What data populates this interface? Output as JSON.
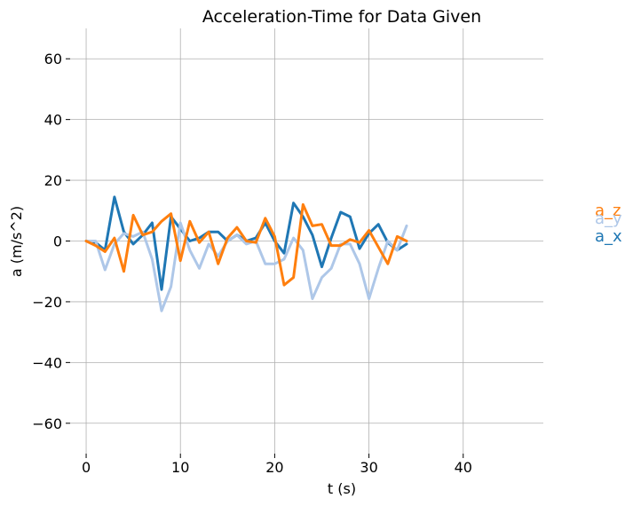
{
  "chart_data": {
    "type": "line",
    "title": "Acceleration-Time for Data Given",
    "xlabel": "t (s)",
    "ylabel": "a (m/s^2)",
    "xlim": [
      -1.7,
      48.5
    ],
    "ylim": [
      -70,
      70
    ],
    "x_ticks": [
      0,
      10,
      20,
      30,
      40
    ],
    "y_ticks": [
      -60,
      -40,
      -20,
      0,
      20,
      40,
      60
    ],
    "x_tick_labels": [
      "0",
      "10",
      "20",
      "30",
      "40"
    ],
    "y_tick_labels": [
      "−60",
      "−40",
      "−20",
      "0",
      "20",
      "40",
      "60"
    ],
    "grid": true,
    "legend": "direct labels at right end",
    "x": [
      0,
      1,
      2,
      3,
      4,
      5,
      6,
      7,
      8,
      9,
      10,
      11,
      12,
      13,
      14,
      15,
      16,
      17,
      18,
      19,
      20,
      21,
      22,
      23,
      24,
      25,
      26,
      27,
      28,
      29,
      30,
      31,
      32,
      33,
      34
    ],
    "series": [
      {
        "name": "a_x",
        "color": "#1f77b4",
        "values": [
          0,
          -0.5,
          -3,
          14.5,
          3,
          -1,
          2,
          6,
          -16,
          8,
          4,
          0,
          1,
          3,
          3,
          0,
          2,
          0,
          1,
          6,
          0,
          -4,
          12.5,
          8,
          2,
          -8.5,
          1,
          9.5,
          8,
          -2.5,
          2.5,
          5.5,
          -0.5,
          -3,
          -1
        ]
      },
      {
        "name": "a_y",
        "color": "#aec7e8",
        "values": [
          0,
          0,
          -9.5,
          -1,
          2.5,
          1.5,
          3,
          -6,
          -23,
          -15,
          6,
          -3,
          -9,
          -1,
          -5,
          0,
          2,
          -1,
          0,
          -7.5,
          -7.5,
          -6,
          1,
          -3,
          -19,
          -12,
          -9,
          -1,
          -1,
          -7.5,
          -19,
          -9,
          0,
          -3,
          5
        ]
      },
      {
        "name": "a_z",
        "color": "#ff7f0e",
        "values": [
          0,
          -1.5,
          -3.5,
          1,
          -10,
          8.5,
          2,
          3,
          6.5,
          9,
          -6.5,
          6.5,
          -0.5,
          3,
          -7.5,
          1,
          4.5,
          0,
          -0.5,
          7.5,
          1.5,
          -14.5,
          -12,
          12,
          5,
          5.5,
          -1.5,
          -1.5,
          0.5,
          -0.5,
          3.5,
          -2,
          -7.5,
          1.5,
          0
        ]
      }
    ]
  }
}
